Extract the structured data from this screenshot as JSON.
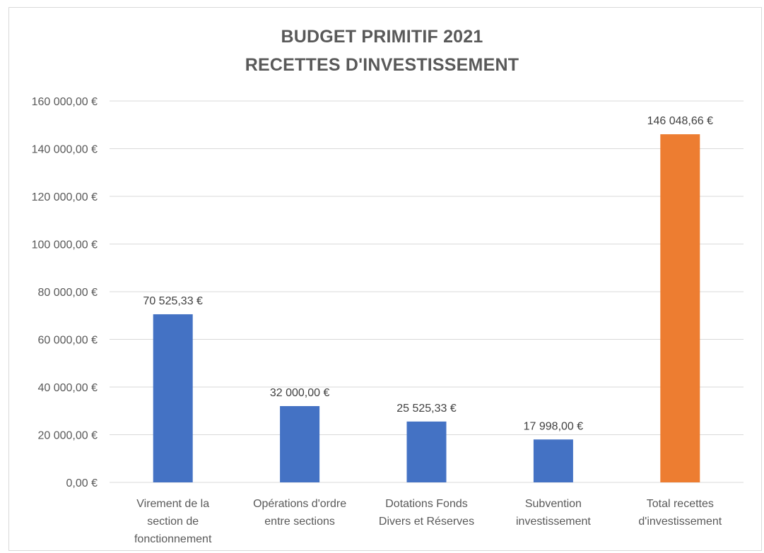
{
  "chart_data": {
    "type": "bar",
    "title_lines": [
      "BUDGET PRIMITIF 2021",
      "RECETTES D'INVESTISSEMENT"
    ],
    "categories": [
      [
        "Virement de la",
        "section de",
        "fonctionnement"
      ],
      [
        "Opérations d'ordre",
        "entre sections"
      ],
      [
        "Dotations Fonds",
        "Divers et Réserves"
      ],
      [
        "Subvention",
        "investissement"
      ],
      [
        "Total recettes",
        "d'investissement"
      ]
    ],
    "values": [
      70525.33,
      32000.0,
      25525.33,
      17998.0,
      146048.66
    ],
    "value_labels": [
      "70 525,33 €",
      "32 000,00 €",
      "25 525,33 €",
      "17 998,00 €",
      "146 048,66 €"
    ],
    "bar_colors": [
      "#4472c4",
      "#4472c4",
      "#4472c4",
      "#4472c4",
      "#ed7d31"
    ],
    "y_ticks": [
      0,
      20000,
      40000,
      60000,
      80000,
      100000,
      120000,
      140000,
      160000
    ],
    "y_tick_labels": [
      "0,00 €",
      "20 000,00 €",
      "40 000,00 €",
      "60 000,00 €",
      "80 000,00 €",
      "100 000,00 €",
      "120 000,00 €",
      "140 000,00 €",
      "160 000,00 €"
    ],
    "ylim": [
      0,
      160000
    ],
    "grid": true,
    "legend": "none",
    "xlabel": "",
    "ylabel": ""
  }
}
